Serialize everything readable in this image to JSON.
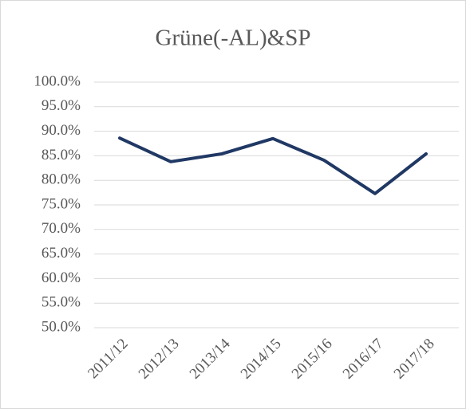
{
  "chart_data": {
    "type": "line",
    "title": "Grüne(-AL)&SP",
    "categories": [
      "2011/12",
      "2012/13",
      "2013/14",
      "2014/15",
      "2015/16",
      "2016/17",
      "2017/18"
    ],
    "series": [
      {
        "name": "Grüne(-AL)&SP",
        "color": "#203864",
        "values": [
          88.6,
          83.8,
          85.4,
          88.5,
          84.1,
          77.3,
          85.4
        ]
      }
    ],
    "ylim": [
      50,
      100
    ],
    "yticks": [
      {
        "value": 50,
        "label": "50.0%"
      },
      {
        "value": 55,
        "label": "55.0%"
      },
      {
        "value": 60,
        "label": "60.0%"
      },
      {
        "value": 65,
        "label": "65.0%"
      },
      {
        "value": 70,
        "label": "70.0%"
      },
      {
        "value": 75,
        "label": "75.0%"
      },
      {
        "value": 80,
        "label": "80.0%"
      },
      {
        "value": 85,
        "label": "85.0%"
      },
      {
        "value": 90,
        "label": "90.0%"
      },
      {
        "value": 95,
        "label": "95.0%"
      },
      {
        "value": 100,
        "label": "100.0%"
      }
    ],
    "grid": true
  }
}
